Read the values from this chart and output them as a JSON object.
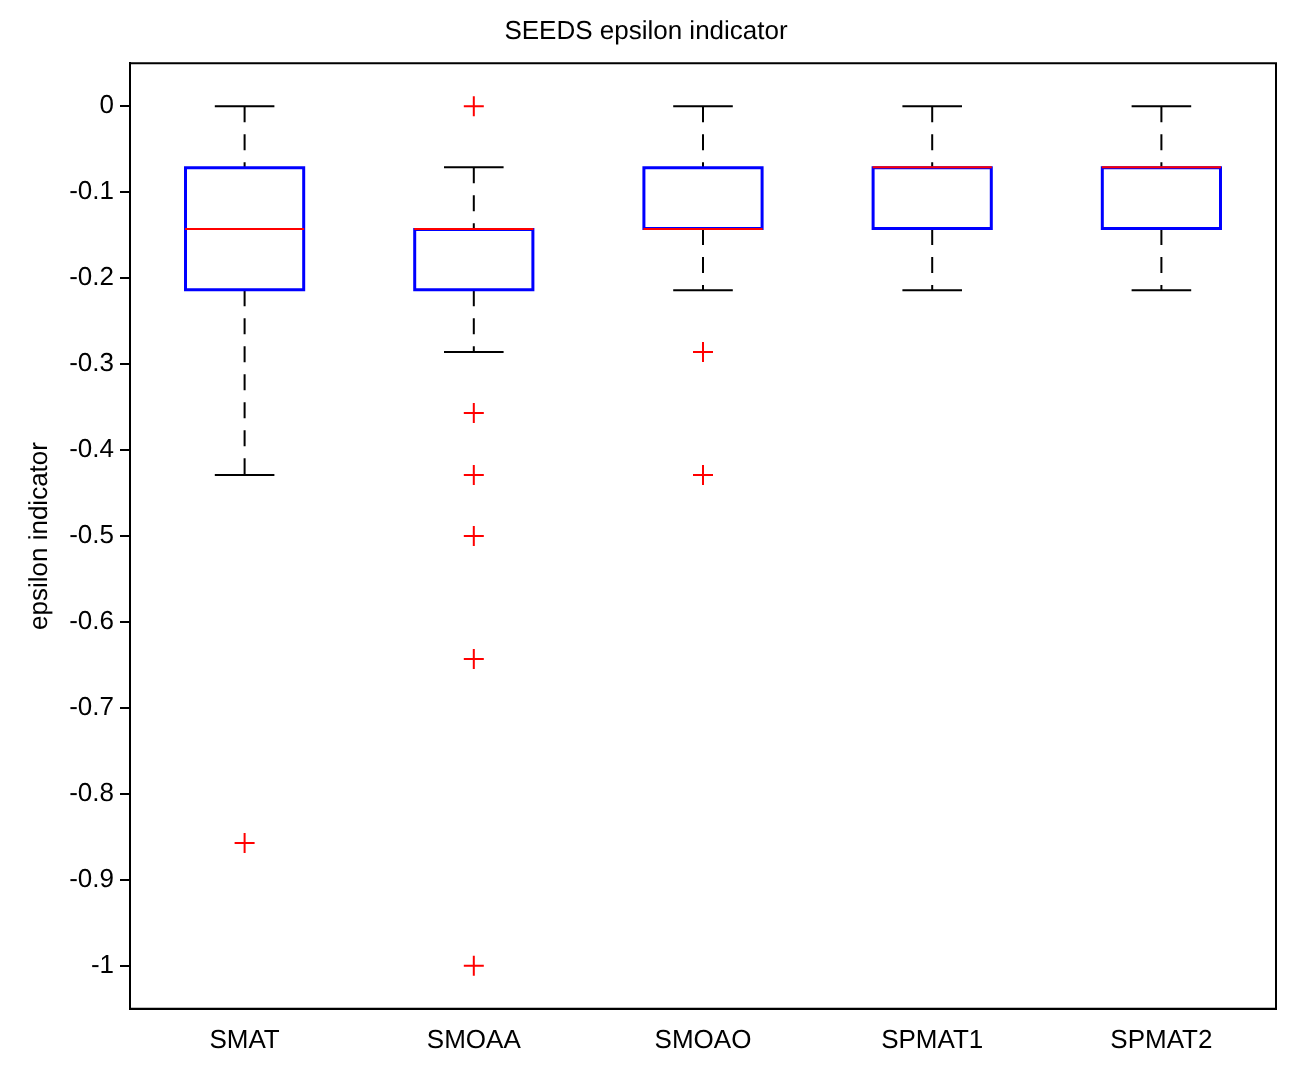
{
  "chart_data": {
    "type": "box",
    "title": "SEEDS epsilon indicator",
    "ylabel": "epsilon indicator",
    "categories": [
      "SMAT",
      "SMOAA",
      "SMOAO",
      "SPMAT1",
      "SPMAT2"
    ],
    "color": "#0000ff",
    "marker": "cross",
    "grid": false,
    "legend": false,
    "boxes": [
      {
        "low": -0.429,
        "q1": -0.214,
        "median": -0.143,
        "q3": -0.071,
        "high": 0,
        "outliers": [
          -0.857
        ]
      },
      {
        "low": -0.286,
        "q1": -0.214,
        "median": -0.143,
        "q3": -0.143,
        "high": -0.071,
        "outliers": [
          0,
          -0.357,
          -0.429,
          -0.5,
          -0.643,
          -1
        ]
      },
      {
        "low": -0.214,
        "q1": -0.143,
        "median": -0.143,
        "q3": -0.071,
        "high": 0,
        "outliers": [
          -0.286,
          -0.429
        ]
      },
      {
        "low": -0.214,
        "q1": -0.143,
        "median": -0.071,
        "q3": -0.071,
        "high": 0
      },
      {
        "low": -0.214,
        "q1": -0.143,
        "median": -0.071,
        "q3": -0.071,
        "high": 0
      }
    ],
    "ylim": [
      -1.05,
      0.05
    ],
    "yticks": [
      0,
      -0.1,
      -0.2,
      -0.3,
      -0.4,
      -0.5,
      -0.6,
      -0.7,
      -0.8,
      -0.9,
      -1
    ]
  }
}
